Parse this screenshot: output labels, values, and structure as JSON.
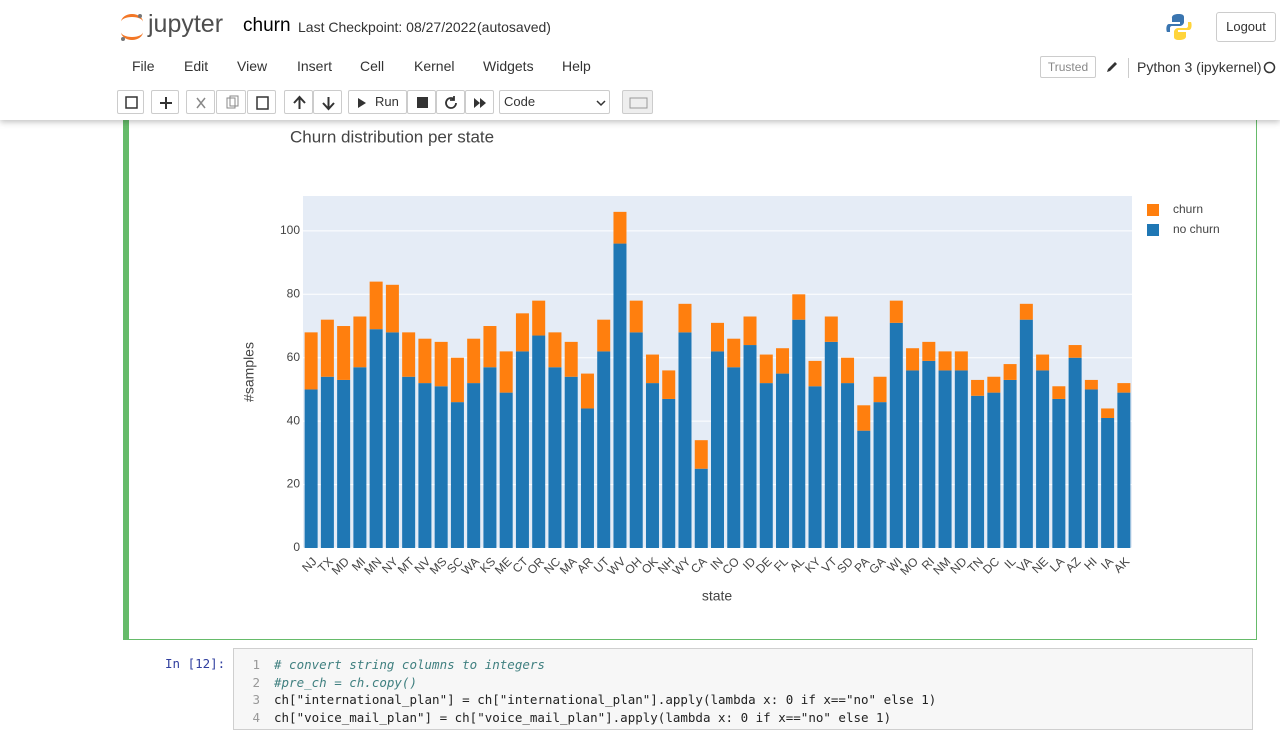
{
  "header": {
    "logo": "jupyter",
    "notebook_name": "churn",
    "checkpoint": "Last Checkpoint: 08/27/2022",
    "autosave": "(autosaved)",
    "logout": "Logout"
  },
  "menu": [
    "File",
    "Edit",
    "View",
    "Insert",
    "Cell",
    "Kernel",
    "Widgets",
    "Help"
  ],
  "kernel_status": {
    "trusted": "Trusted",
    "kernel": "Python 3 (ipykernel)"
  },
  "toolbar": {
    "run": "Run",
    "cell_type": "Code"
  },
  "chart_data": {
    "type": "bar",
    "stacked": true,
    "title": "Churn distribution per state",
    "x_label": "state",
    "y_label": "#samples",
    "categories": [
      "NJ",
      "TX",
      "MD",
      "MI",
      "MN",
      "NY",
      "MT",
      "NV",
      "MS",
      "SC",
      "WA",
      "KS",
      "ME",
      "CT",
      "OR",
      "NC",
      "MA",
      "AR",
      "UT",
      "WV",
      "OH",
      "OK",
      "NH",
      "WY",
      "CA",
      "IN",
      "CO",
      "ID",
      "DE",
      "FL",
      "AL",
      "KY",
      "VT",
      "SD",
      "PA",
      "GA",
      "WI",
      "MO",
      "RI",
      "NM",
      "ND",
      "TN",
      "DC",
      "IL",
      "VA",
      "NE",
      "LA",
      "AZ",
      "HI",
      "IA",
      "AK"
    ],
    "series": [
      {
        "name": "no churn",
        "color": "#1f77b4",
        "values": [
          50,
          54,
          53,
          57,
          69,
          68,
          54,
          52,
          51,
          46,
          52,
          57,
          49,
          62,
          67,
          57,
          54,
          44,
          62,
          96,
          68,
          52,
          47,
          68,
          25,
          62,
          57,
          64,
          52,
          55,
          72,
          51,
          65,
          52,
          37,
          46,
          71,
          56,
          59,
          56,
          56,
          48,
          49,
          53,
          72,
          56,
          47,
          60,
          50,
          41,
          49
        ]
      },
      {
        "name": "churn",
        "color": "#ff7f0e",
        "values": [
          18,
          18,
          17,
          16,
          15,
          15,
          14,
          14,
          14,
          14,
          14,
          13,
          13,
          12,
          11,
          11,
          11,
          11,
          10,
          10,
          10,
          9,
          9,
          9,
          9,
          9,
          9,
          9,
          9,
          8,
          8,
          8,
          8,
          8,
          8,
          8,
          7,
          7,
          6,
          6,
          6,
          5,
          5,
          5,
          5,
          5,
          4,
          4,
          3,
          3,
          3
        ]
      }
    ],
    "ylim": [
      0,
      111
    ],
    "yticks": [
      0,
      20,
      40,
      60,
      80,
      100
    ],
    "grid": true
  },
  "code_cell": {
    "prompt": "In [12]:",
    "lines": [
      {
        "number": "1",
        "code": "# convert string columns to integers"
      },
      {
        "number": "2",
        "code": "#pre_ch = ch.copy()"
      },
      {
        "number": "3",
        "code": "ch[\"international_plan\"] = ch[\"international_plan\"].apply(lambda x: 0 if x==\"no\" else 1)"
      },
      {
        "number": "4",
        "code": "ch[\"voice_mail_plan\"] = ch[\"voice_mail_plan\"].apply(lambda x: 0 if x==\"no\" else 1)"
      }
    ]
  }
}
